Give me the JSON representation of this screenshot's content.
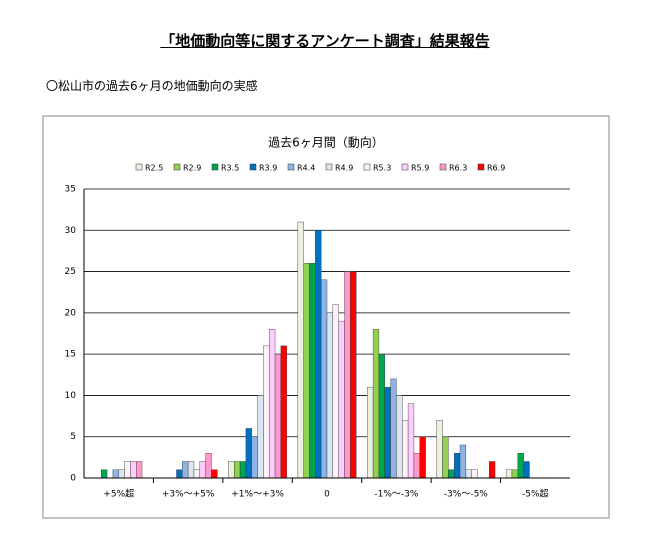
{
  "title": "「地価動向等に関するアンケート調査」結果報告",
  "subtitle": "〇松山市の過去6ヶ月の地価動向の実感",
  "chart_data": {
    "type": "bar",
    "title": "過去6ヶ月間（動向）",
    "categories": [
      "+5%超",
      "+3%～+5%",
      "+1%～+3%",
      "0",
      "-1%～-3%",
      "-3%～-5%",
      "-5%超"
    ],
    "series": [
      {
        "name": "R2.5",
        "color": "#ebf1de",
        "values": [
          0,
          0,
          2,
          31,
          11,
          7,
          1
        ]
      },
      {
        "name": "R2.9",
        "color": "#92d050",
        "values": [
          0,
          0,
          2,
          26,
          18,
          5,
          1
        ]
      },
      {
        "name": "R3.5",
        "color": "#00a550",
        "values": [
          1,
          0,
          2,
          26,
          15,
          1,
          3
        ]
      },
      {
        "name": "R3.9",
        "color": "#0070c0",
        "values": [
          0,
          1,
          6,
          30,
          11,
          3,
          2
        ]
      },
      {
        "name": "R4.4",
        "color": "#8db4e2",
        "values": [
          1,
          2,
          5,
          24,
          12,
          4,
          0
        ]
      },
      {
        "name": "R4.9",
        "color": "#dce6f1",
        "values": [
          1,
          2,
          10,
          20,
          10,
          1,
          0
        ]
      },
      {
        "name": "R5.3",
        "color": "#fdf2f8",
        "values": [
          2,
          1,
          16,
          21,
          7,
          1,
          0
        ]
      },
      {
        "name": "R5.9",
        "color": "#ffccff",
        "values": [
          2,
          2,
          18,
          19,
          9,
          0,
          0
        ]
      },
      {
        "name": "R6.3",
        "color": "#ff99cc",
        "values": [
          2,
          3,
          15,
          25,
          3,
          0,
          0
        ]
      },
      {
        "name": "R6.9",
        "color": "#ff0000",
        "values": [
          0,
          1,
          16,
          25,
          5,
          2,
          0
        ]
      }
    ],
    "ylim": [
      0,
      35
    ],
    "yticks": [
      0,
      5,
      10,
      15,
      20,
      25,
      30,
      35
    ],
    "grid": true
  }
}
